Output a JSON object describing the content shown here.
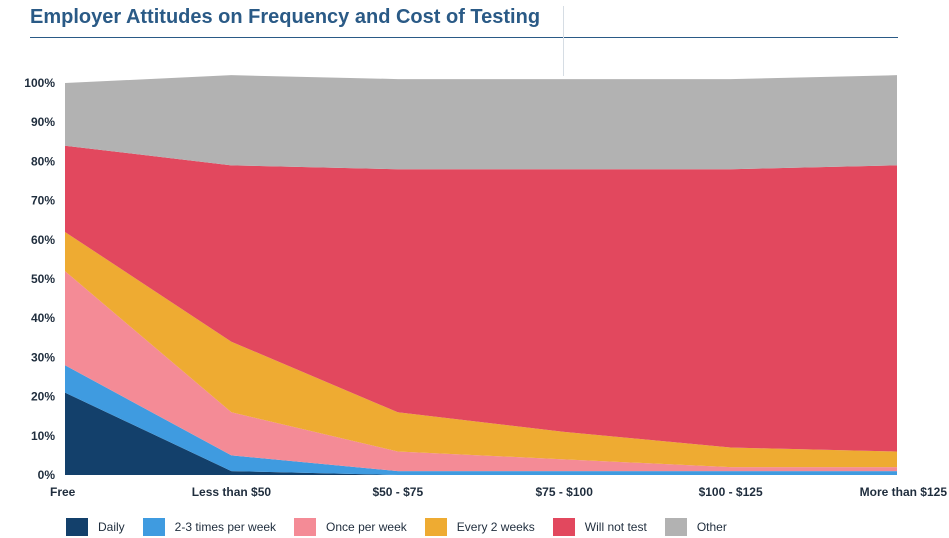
{
  "title": "Employer Attitudes on Frequency and Cost of Testing",
  "chart_data": {
    "type": "area",
    "stacked": true,
    "title": "Employer Attitudes on Frequency and Cost of Testing",
    "xlabel": "",
    "ylabel": "",
    "categories": [
      "Free",
      "Less than $50",
      "$50 - $75",
      "$75 - $100",
      "$100 - $125",
      "More than $125"
    ],
    "ylim": [
      0,
      100
    ],
    "yticks": [
      "0%",
      "10%",
      "20%",
      "30%",
      "40%",
      "50%",
      "60%",
      "70%",
      "80%",
      "90%",
      "100%"
    ],
    "legend_position": "bottom",
    "grid": false,
    "series": [
      {
        "name": "Daily",
        "color": "#13406b",
        "values": [
          21,
          1,
          0,
          0,
          0,
          0
        ]
      },
      {
        "name": "2-3 times per week",
        "color": "#3f9be0",
        "values": [
          7,
          4,
          1,
          1,
          1,
          1
        ]
      },
      {
        "name": "Once per week",
        "color": "#f48b96",
        "values": [
          24,
          11,
          5,
          3,
          1,
          1
        ]
      },
      {
        "name": "Every 2 weeks",
        "color": "#eeab32",
        "values": [
          10,
          18,
          10,
          7,
          5,
          4
        ]
      },
      {
        "name": "Will not test",
        "color": "#e2485e",
        "values": [
          22,
          45,
          62,
          67,
          71,
          73
        ]
      },
      {
        "name": "Other",
        "color": "#b2b2b2",
        "values": [
          16,
          23,
          23,
          23,
          23,
          23
        ]
      }
    ]
  }
}
